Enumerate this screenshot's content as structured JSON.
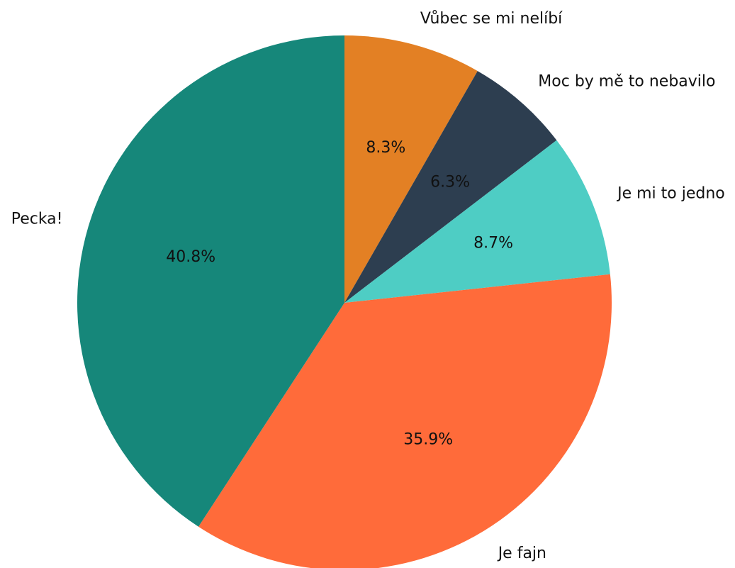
{
  "chart_data": {
    "type": "pie",
    "title": "",
    "slices": [
      {
        "label": "Vůbec se mi nelíbí",
        "value": 8.3,
        "pct_label": "8.3%",
        "color": "#e38024"
      },
      {
        "label": "Moc by mě to nebavilo",
        "value": 6.3,
        "pct_label": "6.3%",
        "color": "#2d3e50"
      },
      {
        "label": "Je mi to jedno",
        "value": 8.7,
        "pct_label": "8.7%",
        "color": "#4ecdc4"
      },
      {
        "label": "Je fajn",
        "value": 35.9,
        "pct_label": "35.9%",
        "color": "#ff6b3a"
      },
      {
        "label": "Pecka!",
        "value": 40.8,
        "pct_label": "40.8%",
        "color": "#16877a"
      }
    ],
    "start_angle": "top",
    "direction": "clockwise",
    "legend": "none"
  }
}
